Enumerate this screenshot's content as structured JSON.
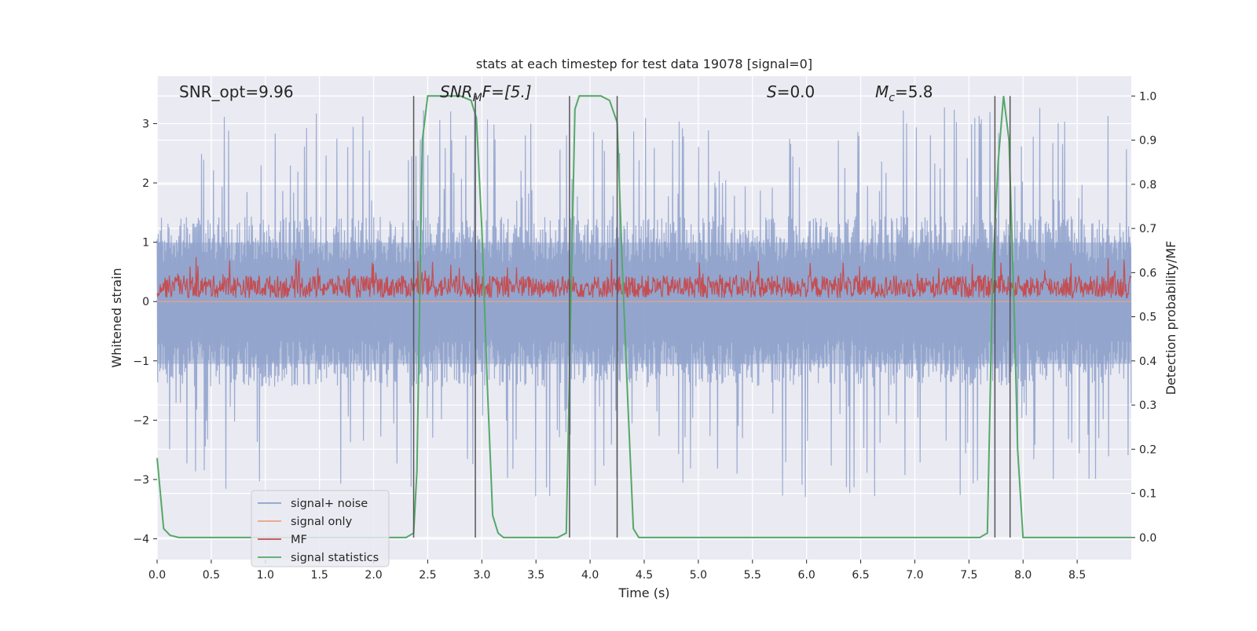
{
  "chart_data": {
    "type": "line",
    "title": "stats at each timestep for test data 19078 [signal=0]",
    "xlabel": "Time (s)",
    "ylabel": "Whitened strain",
    "y2label": "Detection probability/MF",
    "xlim": [
      0.0,
      9.0
    ],
    "ylim": [
      -4.35,
      3.8
    ],
    "y2lim": [
      -0.05,
      1.045
    ],
    "xticks": [
      "0.0",
      "0.5",
      "1.0",
      "1.5",
      "2.0",
      "2.5",
      "3.0",
      "3.5",
      "4.0",
      "4.5",
      "5.0",
      "5.5",
      "6.0",
      "6.5",
      "7.0",
      "7.5",
      "8.0",
      "8.5"
    ],
    "yticks": [
      "3",
      "2",
      "1",
      "0",
      "−1",
      "−2",
      "−3",
      "−4"
    ],
    "y2ticks": [
      "1.0",
      "0.9",
      "0.8",
      "0.7",
      "0.6",
      "0.5",
      "0.4",
      "0.3",
      "0.2",
      "0.1",
      "0.0"
    ],
    "grid": true,
    "legend_position": "lower-left",
    "annotations": {
      "snr_opt": "SNR_opt=9.96",
      "snr_mf_main": "SNR",
      "snr_mf_sub": "M",
      "snr_mf_rest": "F=[5.]",
      "s_var": "S",
      "s_val": "=0.0",
      "mc_var": "M",
      "mc_sub": "c",
      "mc_val": "=5.8"
    },
    "series": [
      {
        "name": "signal+ noise",
        "color": "#8da0cb",
        "kind": "noise",
        "amplitude_typical": 1.2,
        "amplitude_peak": 3.3
      },
      {
        "name": "signal only",
        "color": "#e9a383",
        "kind": "flat",
        "value": 0.0
      },
      {
        "name": "MF",
        "color": "#c44e52",
        "kind": "band",
        "min": 0.0,
        "typical": 0.25,
        "max": 0.75
      },
      {
        "name": "signal statistics",
        "color": "#55a868",
        "kind": "line",
        "x": [
          0.0,
          0.06,
          0.12,
          0.2,
          0.3,
          2.3,
          2.37,
          2.4,
          2.45,
          2.5,
          2.6,
          2.8,
          2.9,
          2.95,
          3.0,
          3.05,
          3.1,
          3.15,
          3.2,
          3.4,
          3.7,
          3.78,
          3.82,
          3.86,
          3.9,
          4.0,
          4.1,
          4.18,
          4.25,
          4.3,
          4.35,
          4.4,
          4.45,
          4.6,
          6.0,
          7.6,
          7.67,
          7.72,
          7.77,
          7.82,
          7.87,
          7.92,
          7.95,
          8.0,
          9.0
        ],
        "y": [
          0.18,
          0.02,
          0.005,
          0.0,
          0.0,
          0.0,
          0.01,
          0.15,
          0.9,
          1.0,
          1.0,
          1.0,
          0.99,
          0.95,
          0.7,
          0.35,
          0.05,
          0.01,
          0.0,
          0.0,
          0.0,
          0.01,
          0.5,
          0.97,
          1.0,
          1.0,
          1.0,
          0.99,
          0.94,
          0.6,
          0.3,
          0.02,
          0.0,
          0.0,
          0.0,
          0.0,
          0.01,
          0.6,
          0.85,
          1.0,
          0.9,
          0.5,
          0.2,
          0.0,
          0.0
        ]
      }
    ],
    "detection_markers": [
      2.37,
      2.94,
      3.81,
      4.25,
      7.74,
      7.88
    ],
    "legend": [
      "signal+ noise",
      "signal only",
      "MF",
      "signal statistics"
    ]
  }
}
